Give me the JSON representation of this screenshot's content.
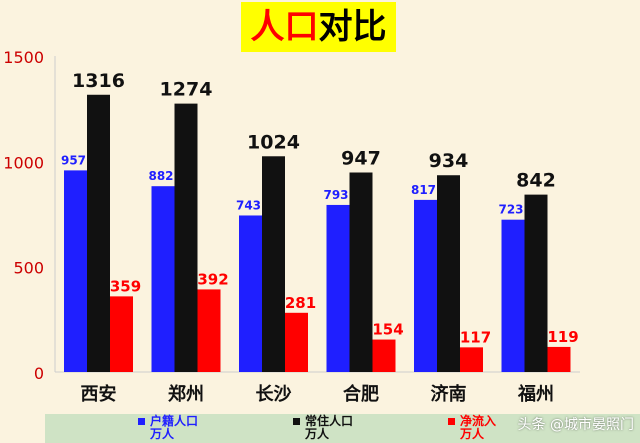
{
  "title": {
    "part1": "人口",
    "part2": "对比"
  },
  "colors": {
    "hukou": "#1f1fff",
    "changzhu": "#111111",
    "netflow": "#ff0000",
    "background": "#fbf3df",
    "legend_band": "#cfe3c5"
  },
  "legend": [
    {
      "line1": "户籍人口",
      "line2": "万人",
      "color": "#1f1fff"
    },
    {
      "line1": "常住人口",
      "line2": "万人",
      "color": "#111111"
    },
    {
      "line1": "净流入",
      "line2": "万人",
      "color": "#ff0000"
    }
  ],
  "watermark": "头条 @城市晏照门",
  "chart_data": {
    "type": "bar",
    "title": "人口对比",
    "categories": [
      "西安",
      "郑州",
      "长沙",
      "合肥",
      "济南",
      "福州"
    ],
    "series": [
      {
        "name": "户籍人口 万人",
        "values": [
          957,
          882,
          743,
          793,
          817,
          723
        ]
      },
      {
        "name": "常住人口 万人",
        "values": [
          1316,
          1274,
          1024,
          947,
          934,
          842
        ]
      },
      {
        "name": "净流入 万人",
        "values": [
          359,
          392,
          281,
          154,
          117,
          119
        ]
      }
    ],
    "ylim": [
      0,
      1500
    ],
    "yticks": [
      0,
      500,
      1000,
      1500
    ],
    "grid": false,
    "legend_position": "bottom"
  }
}
